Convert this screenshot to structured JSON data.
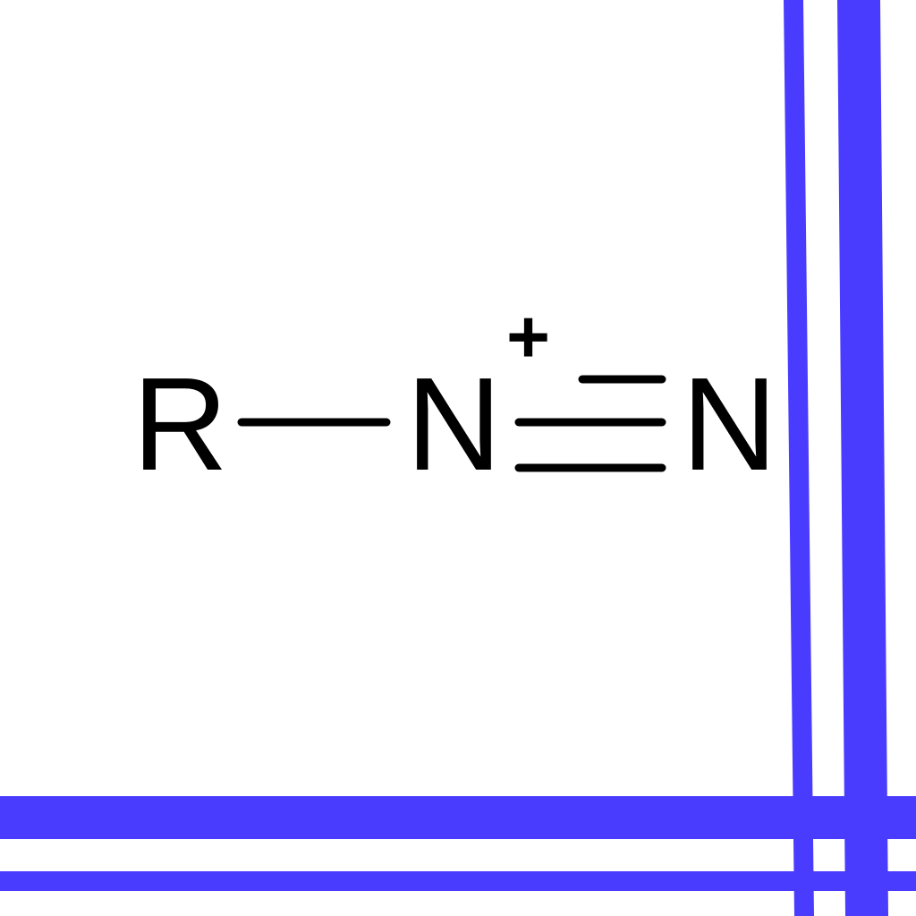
{
  "molecule": {
    "substituent_label": "R",
    "nitrogen_1_label": "N",
    "nitrogen_2_label": "N",
    "charge_label": "+",
    "bond_r_n_order": 1,
    "bond_n_n_order": 3
  },
  "colors": {
    "frame": "#4a3cff",
    "ink": "#000000",
    "background": "#ffffff"
  }
}
